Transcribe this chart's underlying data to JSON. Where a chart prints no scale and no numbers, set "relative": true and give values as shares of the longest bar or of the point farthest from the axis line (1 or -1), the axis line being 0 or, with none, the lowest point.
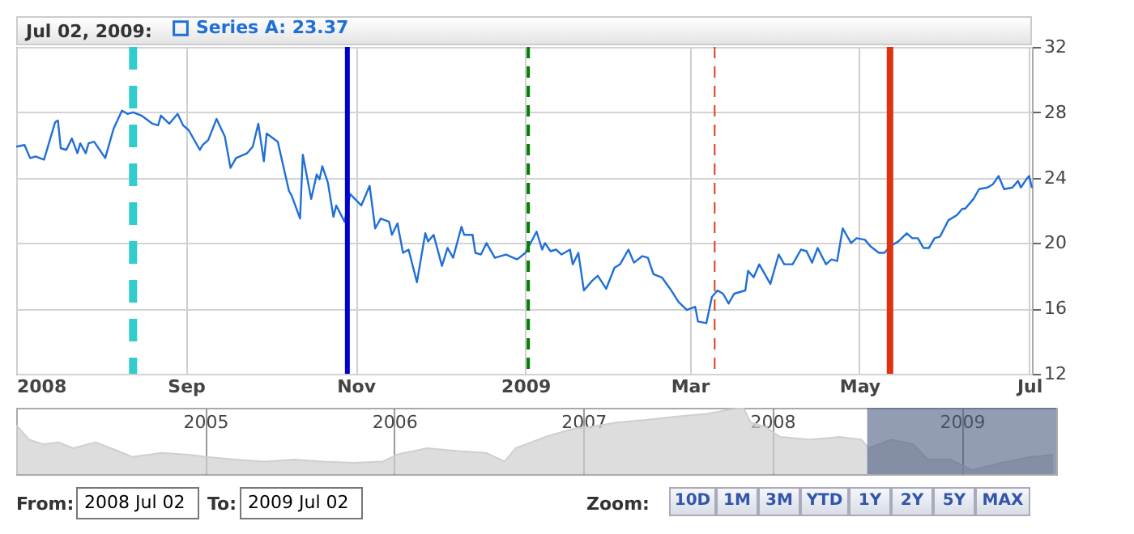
{
  "chart_data": [
    {
      "type": "line",
      "annotations": [
        "Jul 02, 2009:"
      ],
      "x": [
        "2008-07-02",
        "2008-07-05",
        "2008-07-07",
        "2008-07-09",
        "2008-07-12",
        "2008-07-16",
        "2008-07-17",
        "2008-07-18",
        "2008-07-20",
        "2008-07-22",
        "2008-07-24",
        "2008-07-25",
        "2008-07-27",
        "2008-07-28",
        "2008-07-30",
        "2008-08-03",
        "2008-08-06",
        "2008-08-09",
        "2008-08-11",
        "2008-08-13",
        "2008-08-16",
        "2008-08-20",
        "2008-08-22",
        "2008-08-23",
        "2008-08-26",
        "2008-08-29",
        "2008-08-31",
        "2008-09-02",
        "2008-09-06",
        "2008-09-07",
        "2008-09-09",
        "2008-09-12",
        "2008-09-15",
        "2008-09-17",
        "2008-09-19",
        "2008-09-23",
        "2008-09-25",
        "2008-09-27",
        "2008-09-29",
        "2008-09-30",
        "2008-10-04",
        "2008-10-08",
        "2008-10-09",
        "2008-10-12",
        "2008-10-13",
        "2008-10-16",
        "2008-10-18",
        "2008-10-19",
        "2008-10-20",
        "2008-10-22",
        "2008-10-24",
        "2008-10-25",
        "2008-10-28",
        "2008-10-30",
        "2008-11-03",
        "2008-11-06",
        "2008-11-08",
        "2008-11-10",
        "2008-11-13",
        "2008-11-14",
        "2008-11-16",
        "2008-11-18",
        "2008-11-20",
        "2008-11-23",
        "2008-11-26",
        "2008-11-27",
        "2008-11-29",
        "2008-12-02",
        "2008-12-04",
        "2008-12-06",
        "2008-12-09",
        "2008-12-10",
        "2008-12-13",
        "2008-12-14",
        "2008-12-16",
        "2008-12-18",
        "2008-12-21",
        "2008-12-25",
        "2008-12-29",
        "2009-01-01",
        "2009-01-05",
        "2009-01-07",
        "2009-01-08",
        "2009-01-10",
        "2009-01-12",
        "2009-01-14",
        "2009-01-17",
        "2009-01-18",
        "2009-01-20",
        "2009-01-22",
        "2009-01-25",
        "2009-01-27",
        "2009-01-30",
        "2009-02-02",
        "2009-02-04",
        "2009-02-07",
        "2009-02-09",
        "2009-02-12",
        "2009-02-14",
        "2009-02-16",
        "2009-02-19",
        "2009-02-22",
        "2009-02-25",
        "2009-02-28",
        "2009-03-03",
        "2009-03-04",
        "2009-03-07",
        "2009-03-09",
        "2009-03-11",
        "2009-03-13",
        "2009-03-15",
        "2009-03-17",
        "2009-03-21",
        "2009-03-22",
        "2009-03-24",
        "2009-03-26",
        "2009-03-30",
        "2009-04-02",
        "2009-04-04",
        "2009-04-07",
        "2009-04-10",
        "2009-04-12",
        "2009-04-14",
        "2009-04-16",
        "2009-04-19",
        "2009-04-21",
        "2009-04-23",
        "2009-04-25",
        "2009-04-28",
        "2009-04-30",
        "2009-05-03",
        "2009-05-05",
        "2009-05-08",
        "2009-05-10",
        "2009-05-12",
        "2009-05-15",
        "2009-05-18",
        "2009-05-20",
        "2009-05-22",
        "2009-05-24",
        "2009-05-26",
        "2009-05-28",
        "2009-05-30",
        "2009-06-02",
        "2009-06-05",
        "2009-06-07",
        "2009-06-08",
        "2009-06-11",
        "2009-06-13",
        "2009-06-16",
        "2009-06-18",
        "2009-06-20",
        "2009-06-22",
        "2009-06-25",
        "2009-06-27",
        "2009-06-28",
        "2009-06-30",
        "2009-07-01",
        "2009-07-02"
      ],
      "series": [
        {
          "name": "Series A: 23.37",
          "color": "#1f6fd6",
          "values": [
            25.9,
            26.0,
            25.2,
            25.3,
            25.1,
            27.4,
            27.5,
            25.8,
            25.7,
            26.4,
            25.5,
            26.1,
            25.5,
            26.1,
            26.2,
            25.2,
            27.0,
            28.1,
            27.9,
            28.0,
            27.8,
            27.3,
            27.2,
            27.8,
            27.3,
            27.9,
            27.2,
            26.9,
            25.7,
            26.0,
            26.3,
            27.6,
            26.5,
            24.6,
            25.2,
            25.5,
            25.9,
            27.3,
            25.0,
            26.7,
            26.2,
            23.2,
            22.9,
            21.5,
            25.4,
            22.7,
            24.2,
            23.9,
            24.7,
            23.7,
            21.6,
            22.3,
            21.3,
            23.0,
            22.3,
            23.5,
            20.9,
            21.5,
            21.3,
            20.5,
            21.2,
            19.4,
            19.6,
            17.6,
            20.6,
            20.1,
            20.5,
            18.6,
            19.7,
            19.1,
            21.0,
            20.5,
            20.5,
            19.4,
            19.3,
            20.0,
            19.1,
            19.3,
            19.0,
            19.4,
            20.7,
            19.6,
            20.0,
            19.5,
            19.6,
            19.3,
            19.6,
            18.7,
            19.4,
            17.1,
            17.7,
            18.0,
            17.2,
            18.5,
            18.7,
            19.6,
            18.8,
            19.2,
            19.1,
            18.1,
            17.9,
            17.2,
            16.4,
            15.9,
            16.1,
            15.2,
            15.1,
            16.7,
            17.1,
            16.9,
            16.3,
            16.9,
            17.1,
            18.3,
            17.9,
            18.7,
            17.5,
            19.3,
            18.7,
            18.7,
            19.6,
            19.5,
            18.8,
            19.7,
            18.7,
            19.0,
            18.9,
            20.9,
            20.0,
            20.3,
            20.2,
            19.8,
            19.4,
            19.4,
            19.8,
            20.1,
            20.6,
            20.3,
            20.3,
            19.7,
            19.7,
            20.3,
            20.4,
            21.4,
            21.7,
            22.1,
            22.1,
            22.7,
            23.3,
            23.4,
            23.6,
            24.1,
            23.3,
            23.4,
            23.8,
            23.4,
            23.9,
            24.1,
            23.37
          ]
        }
      ],
      "xlim": [
        "2008-07-02",
        "2009-07-02"
      ],
      "xticks": [
        {
          "value": "2008-07-02",
          "label": "2008"
        },
        {
          "value": "2008-09-01",
          "label": "Sep"
        },
        {
          "value": "2008-11-01",
          "label": "Nov"
        },
        {
          "value": "2009-01-01",
          "label": "2009"
        },
        {
          "value": "2009-03-01",
          "label": "Mar"
        },
        {
          "value": "2009-05-01",
          "label": "May"
        },
        {
          "value": "2009-07-01",
          "label": "Jul"
        }
      ],
      "ylim": [
        12,
        32
      ],
      "yticks": [
        12,
        16,
        20,
        24,
        28,
        32
      ],
      "grid": true,
      "legend": "top left",
      "marker": "none",
      "line_style": "solid",
      "ref_lines": [
        {
          "axis": "x",
          "value": "2008-08-13",
          "color": "#33cccc",
          "line_style": "dashed"
        },
        {
          "axis": "x",
          "value": "2008-10-29",
          "color": "#0000cc",
          "line_style": "solid"
        },
        {
          "axis": "x",
          "value": "2009-01-02",
          "color": "#008000",
          "line_style": "dashed"
        },
        {
          "axis": "x",
          "value": "2009-03-10",
          "color": "#e03c1e",
          "line_style": "dashed"
        },
        {
          "axis": "x",
          "value": "2009-05-12",
          "color": "#dd3311",
          "line_style": "solid"
        }
      ]
    },
    {
      "type": "area",
      "relative": true,
      "x": [
        "2004-01-02",
        "2004-01-27",
        "2004-02-24",
        "2004-03-24",
        "2004-04-21",
        "2004-06-03",
        "2004-07-16",
        "2004-08-13",
        "2004-10-09",
        "2004-12-05",
        "2005-01-03",
        "2005-03-01",
        "2005-04-26",
        "2005-06-22",
        "2005-08-18",
        "2005-10-14",
        "2005-12-10",
        "2006-01-08",
        "2006-03-05",
        "2006-05-01",
        "2006-06-27",
        "2006-08-02",
        "2006-08-23",
        "2006-10-19",
        "2006-12-15",
        "2007-01-12",
        "2007-03-09",
        "2007-05-05",
        "2007-07-01",
        "2007-08-27",
        "2007-10-09",
        "2007-11-06",
        "2007-11-20",
        "2007-12-19",
        "2008-01-16",
        "2008-03-13",
        "2008-05-09",
        "2008-06-21",
        "2008-07-05",
        "2008-08-17",
        "2008-09-29",
        "2008-10-27",
        "2008-12-09",
        "2009-01-21",
        "2009-03-18",
        "2009-05-14",
        "2009-06-26"
      ],
      "series": [
        {
          "color": "#cfcfcf",
          "values": [
            0.74,
            0.52,
            0.45,
            0.48,
            0.39,
            0.48,
            0.35,
            0.26,
            0.32,
            0.29,
            0.26,
            0.22,
            0.19,
            0.22,
            0.19,
            0.17,
            0.19,
            0.3,
            0.39,
            0.35,
            0.32,
            0.19,
            0.39,
            0.56,
            0.69,
            0.71,
            0.78,
            0.82,
            0.87,
            0.91,
            0.97,
            1,
            0.78,
            0.71,
            0.56,
            0.52,
            0.56,
            0.52,
            0.39,
            0.52,
            0.45,
            0.22,
            0.22,
            0.06,
            0.17,
            0.26,
            0.29
          ]
        }
      ],
      "xlim": [
        "2004-01-02",
        "2009-07-02"
      ],
      "xticks": [
        {
          "value": "2005-01-01",
          "label": "2005"
        },
        {
          "value": "2006-01-01",
          "label": "2006"
        },
        {
          "value": "2007-01-01",
          "label": "2007"
        },
        {
          "value": "2008-01-01",
          "label": "2008"
        },
        {
          "value": "2009-01-01",
          "label": "2009"
        }
      ],
      "grid": "x",
      "tick_labels": "x",
      "bands": [
        {
          "axis": "x",
          "from": "2008-07-02",
          "to": "2009-07-02",
          "color": "#4a5a80"
        }
      ]
    },
    {
      "type": "other",
      "annotations": [
        "From:",
        "2008 Jul 02",
        "To:",
        "2009 Jul 02",
        "Zoom:",
        "10D",
        "1M",
        "3M",
        "YTD",
        "1Y",
        "2Y",
        "5Y",
        "MAX"
      ]
    }
  ]
}
